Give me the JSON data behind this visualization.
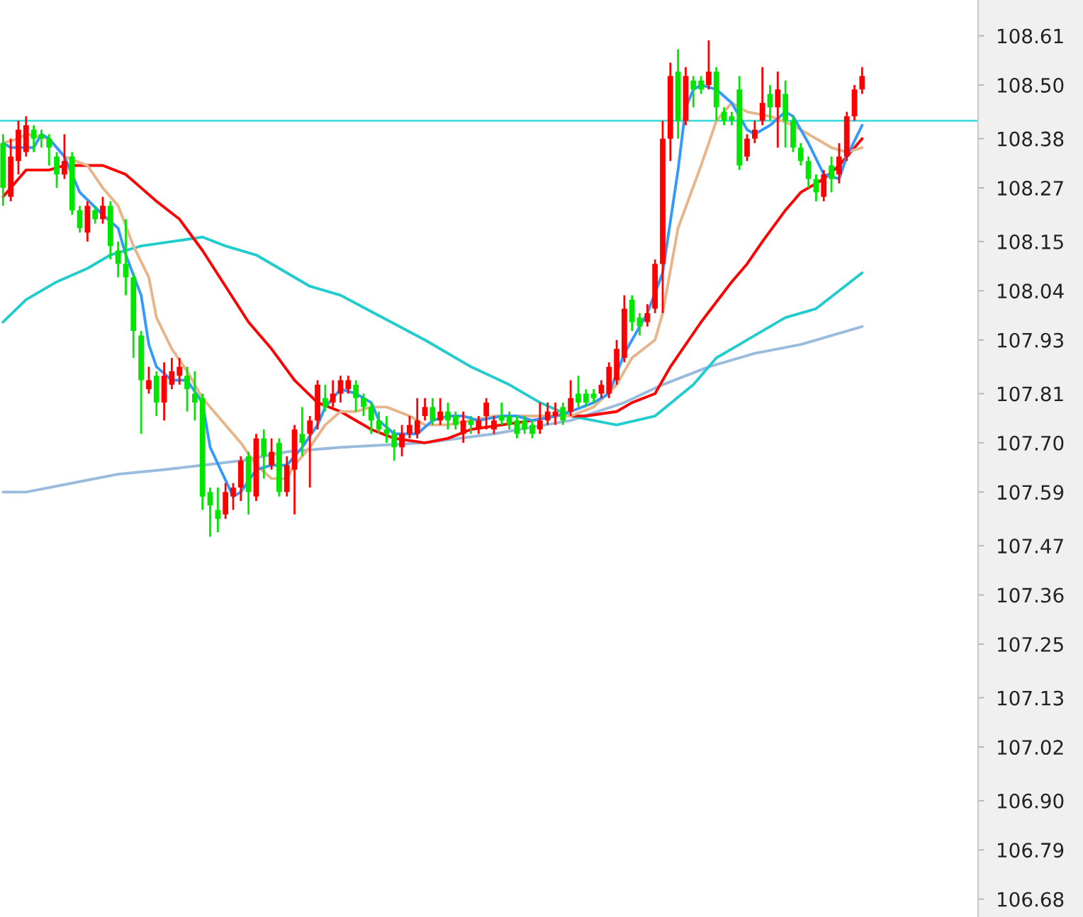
{
  "chart_data": {
    "type": "candlestick",
    "categories": [
      null,
      null,
      null,
      null,
      null,
      null,
      null,
      null,
      null,
      null,
      null,
      null,
      null,
      null,
      null,
      null,
      null,
      null,
      null,
      null,
      null,
      null,
      null,
      null,
      null,
      null,
      null,
      null,
      null,
      null,
      null,
      null,
      null,
      null,
      null,
      null,
      null,
      null,
      null,
      null,
      null,
      null,
      null,
      null,
      null,
      null,
      null,
      null,
      null,
      null,
      null,
      null,
      null,
      null,
      null,
      null,
      null,
      null,
      null,
      null,
      null,
      null,
      null,
      null,
      null,
      null,
      null,
      null,
      null,
      null,
      null,
      null,
      null,
      null,
      null,
      null,
      null,
      null,
      null,
      null,
      null,
      null,
      null,
      null,
      null,
      null,
      null,
      null,
      null,
      null,
      null,
      null,
      null,
      null,
      null,
      null,
      null,
      null,
      null,
      null,
      null,
      null,
      null,
      null,
      null,
      null,
      null,
      null,
      null,
      null,
      null,
      null,
      null
    ],
    "ohlc": [
      [
        108.37,
        108.39,
        108.23,
        108.27
      ],
      [
        108.25,
        108.38,
        108.24,
        108.34
      ],
      [
        108.33,
        108.42,
        108.3,
        108.4
      ],
      [
        108.35,
        108.43,
        108.34,
        108.41
      ],
      [
        108.4,
        108.41,
        108.35,
        108.38
      ],
      [
        108.39,
        108.4,
        108.36,
        108.38
      ],
      [
        108.38,
        108.39,
        108.32,
        108.36
      ],
      [
        108.34,
        108.35,
        108.27,
        108.3
      ],
      [
        108.3,
        108.39,
        108.29,
        108.33
      ],
      [
        108.34,
        108.35,
        108.21,
        108.22
      ],
      [
        108.22,
        108.23,
        108.17,
        108.18
      ],
      [
        108.17,
        108.24,
        108.15,
        108.23
      ],
      [
        108.22,
        108.23,
        108.19,
        108.2
      ],
      [
        108.2,
        108.25,
        108.19,
        108.23
      ],
      [
        108.23,
        108.24,
        108.11,
        108.14
      ],
      [
        108.13,
        108.15,
        108.07,
        108.1
      ],
      [
        108.1,
        108.2,
        108.03,
        108.07
      ],
      [
        108.07,
        108.08,
        107.89,
        107.95
      ],
      [
        107.94,
        107.95,
        107.72,
        107.84
      ],
      [
        107.82,
        107.87,
        107.81,
        107.84
      ],
      [
        107.85,
        107.86,
        107.76,
        107.79
      ],
      [
        107.79,
        107.88,
        107.75,
        107.85
      ],
      [
        107.83,
        107.89,
        107.82,
        107.86
      ],
      [
        107.85,
        107.89,
        107.83,
        107.87
      ],
      [
        107.85,
        107.87,
        107.77,
        107.82
      ],
      [
        107.81,
        107.86,
        107.75,
        107.79
      ],
      [
        107.8,
        107.81,
        107.55,
        107.58
      ],
      [
        107.59,
        107.6,
        107.49,
        107.56
      ],
      [
        107.55,
        107.6,
        107.5,
        107.53
      ],
      [
        107.54,
        107.61,
        107.53,
        107.59
      ],
      [
        107.58,
        107.61,
        107.55,
        107.6
      ],
      [
        107.6,
        107.67,
        107.57,
        107.66
      ],
      [
        107.67,
        107.68,
        107.54,
        107.59
      ],
      [
        107.58,
        107.72,
        107.57,
        107.71
      ],
      [
        107.71,
        107.73,
        107.62,
        107.67
      ],
      [
        107.65,
        107.71,
        107.64,
        107.68
      ],
      [
        107.7,
        107.71,
        107.58,
        107.59
      ],
      [
        107.59,
        107.67,
        107.58,
        107.65
      ],
      [
        107.64,
        107.74,
        107.54,
        107.73
      ],
      [
        107.72,
        107.78,
        107.67,
        107.7
      ],
      [
        107.72,
        107.76,
        107.6,
        107.75
      ],
      [
        107.75,
        107.84,
        107.73,
        107.83
      ],
      [
        107.8,
        107.83,
        107.77,
        107.78
      ],
      [
        107.79,
        107.84,
        107.78,
        107.81
      ],
      [
        107.81,
        107.85,
        107.79,
        107.84
      ],
      [
        107.82,
        107.85,
        107.81,
        107.84
      ],
      [
        107.83,
        107.84,
        107.77,
        107.8
      ],
      [
        107.8,
        107.81,
        107.76,
        107.78
      ],
      [
        107.78,
        107.79,
        107.72,
        107.75
      ],
      [
        107.75,
        107.77,
        107.72,
        107.73
      ],
      [
        107.73,
        107.76,
        107.7,
        107.72
      ],
      [
        107.72,
        107.73,
        107.66,
        107.69
      ],
      [
        107.69,
        107.74,
        107.67,
        107.72
      ],
      [
        107.72,
        107.76,
        107.71,
        107.74
      ],
      [
        107.72,
        107.8,
        107.71,
        107.75
      ],
      [
        107.76,
        107.8,
        107.75,
        107.78
      ],
      [
        107.78,
        107.8,
        107.74,
        107.75
      ],
      [
        107.75,
        107.8,
        107.74,
        107.77
      ],
      [
        107.77,
        107.79,
        107.73,
        107.75
      ],
      [
        107.76,
        107.77,
        107.73,
        107.74
      ],
      [
        107.72,
        107.77,
        107.7,
        107.75
      ],
      [
        107.75,
        107.76,
        107.72,
        107.74
      ],
      [
        107.73,
        107.76,
        107.72,
        107.75
      ],
      [
        107.76,
        107.8,
        107.73,
        107.79
      ],
      [
        107.73,
        107.76,
        107.72,
        107.75
      ],
      [
        107.76,
        107.79,
        107.74,
        107.75
      ],
      [
        107.76,
        107.77,
        107.73,
        107.74
      ],
      [
        107.75,
        107.76,
        107.71,
        107.72
      ],
      [
        107.75,
        107.76,
        107.72,
        107.73
      ],
      [
        107.74,
        107.75,
        107.71,
        107.72
      ],
      [
        107.73,
        107.79,
        107.72,
        107.75
      ],
      [
        107.75,
        107.79,
        107.74,
        107.77
      ],
      [
        107.76,
        107.79,
        107.74,
        107.77
      ],
      [
        107.78,
        107.79,
        107.74,
        107.75
      ],
      [
        107.77,
        107.84,
        107.76,
        107.8
      ],
      [
        107.81,
        107.85,
        107.78,
        107.79
      ],
      [
        107.81,
        107.82,
        107.78,
        107.79
      ],
      [
        107.81,
        107.82,
        107.79,
        107.8
      ],
      [
        107.81,
        107.84,
        107.8,
        107.83
      ],
      [
        107.81,
        107.88,
        107.8,
        107.87
      ],
      [
        107.84,
        107.93,
        107.83,
        107.91
      ],
      [
        107.89,
        108.03,
        107.88,
        108.0
      ],
      [
        108.02,
        108.03,
        107.95,
        107.97
      ],
      [
        107.98,
        107.99,
        107.94,
        107.96
      ],
      [
        107.97,
        108.01,
        107.96,
        107.99
      ],
      [
        108.0,
        108.11,
        107.99,
        108.1
      ],
      [
        108.1,
        108.42,
        107.99,
        108.38
      ],
      [
        108.38,
        108.55,
        108.33,
        108.52
      ],
      [
        108.53,
        108.58,
        108.38,
        108.42
      ],
      [
        108.42,
        108.54,
        108.41,
        108.52
      ],
      [
        108.51,
        108.52,
        108.45,
        108.49
      ],
      [
        108.51,
        108.52,
        108.48,
        108.49
      ],
      [
        108.5,
        108.6,
        108.49,
        108.53
      ],
      [
        108.53,
        108.54,
        108.42,
        108.45
      ],
      [
        108.44,
        108.45,
        108.41,
        108.42
      ],
      [
        108.43,
        108.44,
        108.41,
        108.42
      ],
      [
        108.49,
        108.52,
        108.31,
        108.32
      ],
      [
        108.34,
        108.39,
        108.33,
        108.38
      ],
      [
        108.38,
        108.42,
        108.37,
        108.4
      ],
      [
        108.42,
        108.54,
        108.41,
        108.46
      ],
      [
        108.48,
        108.5,
        108.42,
        108.45
      ],
      [
        108.45,
        108.53,
        108.36,
        108.49
      ],
      [
        108.48,
        108.51,
        108.36,
        108.42
      ],
      [
        108.42,
        108.43,
        108.35,
        108.36
      ],
      [
        108.36,
        108.37,
        108.32,
        108.33
      ],
      [
        108.33,
        108.34,
        108.27,
        108.29
      ],
      [
        108.29,
        108.3,
        108.24,
        108.26
      ],
      [
        108.25,
        108.31,
        108.24,
        108.3
      ],
      [
        108.32,
        108.34,
        108.26,
        108.29
      ],
      [
        108.3,
        108.37,
        108.28,
        108.34
      ],
      [
        108.34,
        108.44,
        108.33,
        108.43
      ],
      [
        108.43,
        108.5,
        108.42,
        108.49
      ],
      [
        108.49,
        108.54,
        108.48,
        108.52
      ]
    ],
    "colors": [
      "#00e600",
      "#ff0000",
      "#ff0000",
      "#ff0000",
      "#00e600",
      "#00e600",
      "#00e600",
      "#00e600",
      "#ff0000",
      "#00e600",
      "#00e600",
      "#ff0000",
      "#00e600",
      "#ff0000",
      "#00e600",
      "#00e600",
      "#00e600",
      "#00e600",
      "#00e600",
      "#ff0000",
      "#00e600",
      "#ff0000",
      "#ff0000",
      "#ff0000",
      "#00e600",
      "#00e600",
      "#00e600",
      "#00e600",
      "#00e600",
      "#ff0000",
      "#ff0000",
      "#ff0000",
      "#00e600",
      "#ff0000",
      "#00e600",
      "#ff0000",
      "#00e600",
      "#ff0000",
      "#ff0000",
      "#00e600",
      "#ff0000",
      "#ff0000",
      "#00e600",
      "#ff0000",
      "#ff0000",
      "#ff0000",
      "#00e600",
      "#00e600",
      "#00e600",
      "#00e600",
      "#00e600",
      "#00e600",
      "#ff0000",
      "#ff0000",
      "#ff0000",
      "#ff0000",
      "#00e600",
      "#ff0000",
      "#00e600",
      "#00e600",
      "#ff0000",
      "#00e600",
      "#ff0000",
      "#ff0000",
      "#ff0000",
      "#00e600",
      "#00e600",
      "#00e600",
      "#00e600",
      "#00e600",
      "#ff0000",
      "#ff0000",
      "#ff0000",
      "#00e600",
      "#ff0000",
      "#00e600",
      "#00e600",
      "#00e600",
      "#ff0000",
      "#ff0000",
      "#ff0000",
      "#ff0000",
      "#00e600",
      "#00e600",
      "#ff0000",
      "#ff0000",
      "#ff0000",
      "#ff0000",
      "#00e600",
      "#ff0000",
      "#00e600",
      "#00e600",
      "#ff0000",
      "#00e600",
      "#00e600",
      "#00e600",
      "#00e600",
      "#ff0000",
      "#ff0000",
      "#ff0000",
      "#00e600",
      "#ff0000",
      "#00e600",
      "#00e600",
      "#00e600",
      "#00e600",
      "#00e600",
      "#ff0000",
      "#00e600",
      "#ff0000",
      "#ff0000",
      "#ff0000",
      "#ff0000"
    ],
    "series": [
      {
        "type": "line",
        "color": "#99bbdd",
        "values": [
          107.59,
          null,
          null,
          107.59,
          null,
          null,
          null,
          null,
          null,
          107.61,
          null,
          null,
          null,
          null,
          null,
          107.63,
          null,
          null,
          null,
          null,
          null,
          107.64,
          null,
          null,
          null,
          null,
          107.65,
          null,
          null,
          null,
          null,
          107.66,
          null,
          null,
          null,
          null,
          null,
          107.68,
          null,
          null,
          null,
          null,
          null,
          null,
          107.69,
          null,
          null,
          null,
          null,
          null,
          null,
          null,
          null,
          null,
          null,
          107.7,
          null,
          null,
          null,
          null,
          null,
          null,
          null,
          null,
          107.72,
          null,
          null,
          null,
          null,
          null,
          null,
          null,
          null,
          null,
          107.75,
          null,
          null,
          null,
          null,
          null,
          null,
          107.79,
          null,
          null,
          null,
          null,
          107.83,
          null,
          null,
          null,
          null,
          null,
          107.87,
          null,
          null,
          null,
          null,
          null,
          107.9,
          null,
          null,
          null,
          null,
          null,
          107.92,
          null,
          null,
          null,
          null,
          null,
          null,
          null,
          107.96
        ]
      },
      {
        "type": "line",
        "color": "#22cccc",
        "values": [
          107.97,
          null,
          null,
          108.02,
          null,
          null,
          null,
          108.06,
          null,
          null,
          null,
          108.09,
          null,
          null,
          108.12,
          null,
          null,
          null,
          108.14,
          null,
          null,
          null,
          108.15,
          null,
          null,
          null,
          108.16,
          null,
          null,
          108.14,
          null,
          null,
          null,
          108.12,
          null,
          null,
          null,
          108.08,
          null,
          null,
          108.05,
          null,
          null,
          null,
          108.03,
          null,
          null,
          null,
          null,
          null,
          null,
          null,
          null,
          null,
          null,
          107.93,
          null,
          null,
          null,
          null,
          null,
          107.87,
          null,
          null,
          null,
          null,
          107.83,
          null,
          null,
          null,
          107.79,
          null,
          null,
          null,
          107.76,
          null,
          null,
          107.75,
          null,
          null,
          107.74,
          null,
          null,
          null,
          null,
          107.76,
          null,
          null,
          null,
          null,
          107.83,
          null,
          null,
          107.89,
          null,
          null,
          null,
          null,
          107.94,
          null,
          null,
          null,
          107.98,
          null,
          null,
          null,
          108.0,
          null,
          null,
          108.04,
          null,
          null,
          108.08
        ]
      },
      {
        "type": "line",
        "color": "#ff0000",
        "values": [
          108.25,
          null,
          108.29,
          108.31,
          null,
          null,
          108.31,
          null,
          108.32,
          null,
          null,
          108.32,
          null,
          108.32,
          null,
          null,
          108.3,
          null,
          108.27,
          null,
          108.24,
          null,
          null,
          108.2,
          null,
          null,
          108.13,
          null,
          null,
          108.05,
          null,
          null,
          107.97,
          null,
          null,
          107.91,
          null,
          null,
          107.84,
          null,
          null,
          107.79,
          null,
          null,
          107.77,
          null,
          null,
          null,
          107.73,
          null,
          null,
          107.71,
          null,
          null,
          null,
          107.7,
          null,
          null,
          107.71,
          null,
          null,
          107.73,
          null,
          null,
          null,
          107.74,
          null,
          null,
          null,
          107.75,
          null,
          null,
          107.76,
          null,
          null,
          null,
          107.76,
          null,
          null,
          null,
          107.77,
          null,
          107.79,
          null,
          null,
          107.81,
          null,
          107.87,
          null,
          null,
          null,
          107.97,
          null,
          null,
          null,
          108.06,
          null,
          108.1,
          null,
          108.15,
          null,
          null,
          108.22,
          null,
          108.26,
          null,
          null,
          108.29,
          null,
          108.32,
          null,
          null,
          108.38
        ]
      },
      {
        "type": "line",
        "color": "#e8b48a",
        "values": [
          108.37,
          null,
          108.38,
          108.39,
          null,
          null,
          108.38,
          null,
          108.34,
          null,
          null,
          108.32,
          null,
          108.27,
          null,
          108.23,
          null,
          108.14,
          null,
          108.07,
          107.98,
          null,
          107.91,
          null,
          107.86,
          null,
          107.8,
          null,
          null,
          107.74,
          null,
          107.7,
          null,
          107.65,
          null,
          107.62,
          null,
          107.62,
          107.65,
          null,
          107.69,
          null,
          107.74,
          null,
          107.77,
          null,
          107.77,
          null,
          107.78,
          null,
          107.78,
          null,
          null,
          107.76,
          null,
          107.74,
          null,
          null,
          107.74,
          null,
          null,
          107.75,
          null,
          null,
          107.76,
          null,
          null,
          107.76,
          null,
          null,
          107.76,
          null,
          null,
          null,
          107.76,
          null,
          null,
          107.78,
          null,
          null,
          107.83,
          null,
          107.89,
          null,
          null,
          107.93,
          107.99,
          null,
          108.18,
          null,
          null,
          108.32,
          null,
          108.42,
          null,
          108.46,
          null,
          108.44,
          null,
          null,
          108.43,
          null,
          null,
          108.41,
          null,
          108.39,
          null,
          null,
          108.36,
          null,
          108.35,
          null,
          108.36
        ]
      },
      {
        "type": "line",
        "color": "#3399ff",
        "values": [
          108.37,
          108.36,
          null,
          null,
          108.36,
          108.39,
          108.38,
          null,
          108.34,
          null,
          108.26,
          null,
          null,
          108.21,
          null,
          108.18,
          108.12,
          null,
          108.03,
          107.92,
          107.87,
          null,
          107.84,
          null,
          107.84,
          null,
          107.79,
          107.69,
          null,
          null,
          107.58,
          107.59,
          null,
          107.64,
          null,
          107.65,
          null,
          107.65,
          null,
          107.69,
          null,
          107.74,
          107.78,
          null,
          107.82,
          null,
          107.81,
          null,
          107.79,
          107.75,
          null,
          107.72,
          null,
          null,
          107.72,
          null,
          107.75,
          null,
          107.76,
          null,
          107.76,
          null,
          107.75,
          null,
          null,
          107.76,
          null,
          107.76,
          null,
          107.75,
          null,
          null,
          107.76,
          null,
          107.77,
          null,
          null,
          107.79,
          null,
          107.81,
          null,
          107.9,
          null,
          null,
          107.99,
          null,
          108.08,
          null,
          108.31,
          108.45,
          108.49,
          108.5,
          null,
          108.49,
          null,
          108.46,
          null,
          108.4,
          108.39,
          null,
          108.41,
          null,
          108.44,
          108.43,
          null,
          108.37,
          null,
          108.3,
          null,
          108.29,
          108.34,
          null,
          108.41
        ]
      }
    ],
    "ylim": [
      106.64,
      108.69
    ],
    "yticks": [
      106.68,
      106.79,
      {
        "value": 106.9,
        "label": "106.90"
      },
      107.02,
      107.13,
      107.25,
      107.36,
      107.47,
      107.59,
      {
        "value": 107.7,
        "label": "107.70"
      },
      107.81,
      107.93,
      108.04,
      108.15,
      108.27,
      108.38,
      {
        "value": 108.5,
        "label": "108.50"
      },
      108.61
    ],
    "ref_lines": [
      {
        "axis": "y",
        "value": 108.42,
        "color": "#44dddd"
      }
    ],
    "tick_labels": "y",
    "grid": false
  }
}
